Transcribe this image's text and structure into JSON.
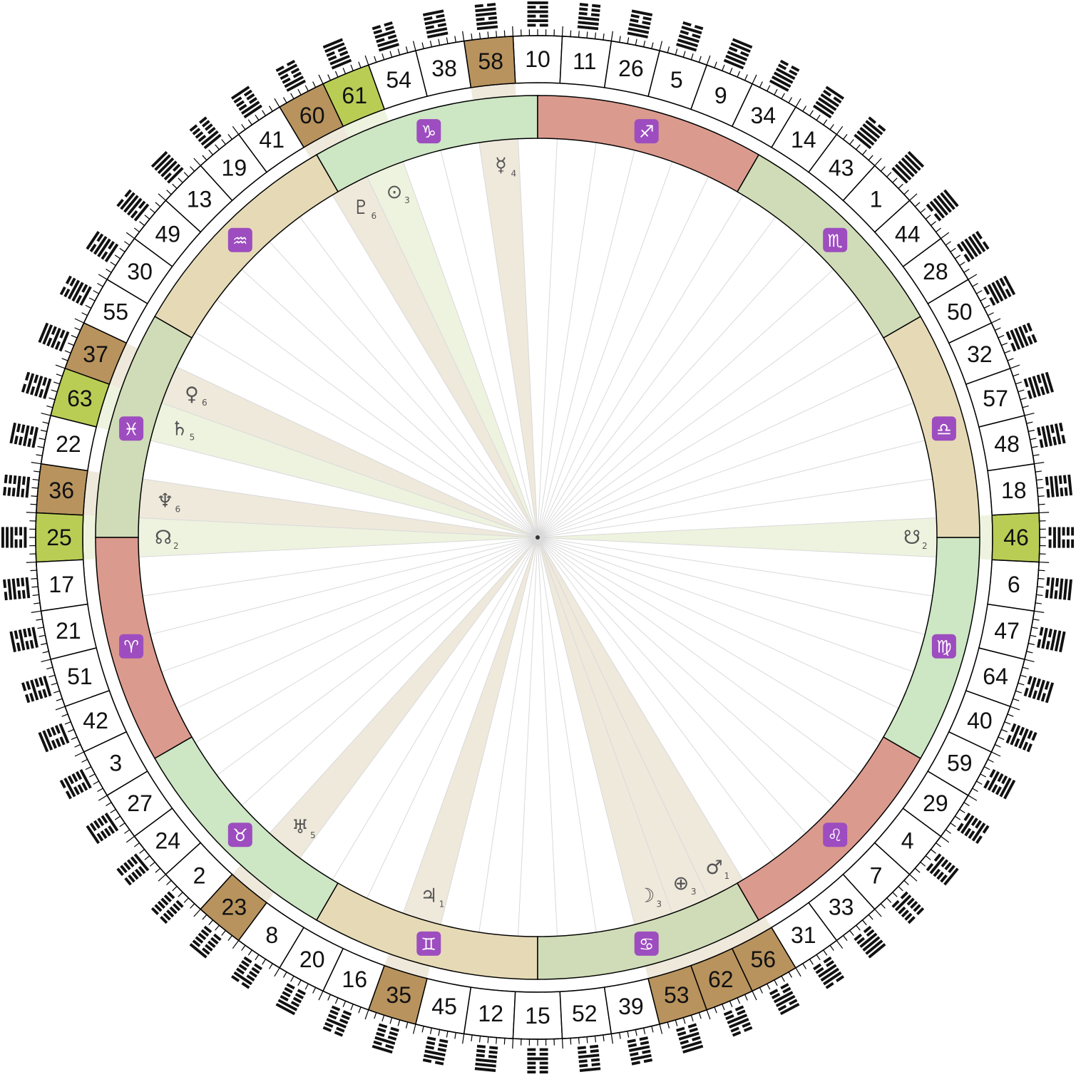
{
  "wheel": {
    "gates_counterclockwise_from_top": [
      10,
      58,
      38,
      54,
      61,
      60,
      41,
      19,
      13,
      49,
      30,
      55,
      37,
      63,
      22,
      36,
      25,
      17,
      21,
      51,
      42,
      3,
      27,
      24,
      2,
      23,
      8,
      20,
      16,
      35,
      45,
      12,
      15,
      52,
      39,
      53,
      62,
      56,
      31,
      33,
      7,
      4,
      29,
      59,
      40,
      64,
      47,
      6,
      46,
      18,
      48,
      57,
      32,
      50,
      28,
      44,
      1,
      43,
      14,
      34,
      9,
      5,
      26,
      11
    ],
    "highlighted_gates": [
      {
        "gate": 58,
        "color": "#b8935e"
      },
      {
        "gate": 61,
        "color": "#b9cd55"
      },
      {
        "gate": 60,
        "color": "#b8935e"
      },
      {
        "gate": 37,
        "color": "#b8935e"
      },
      {
        "gate": 63,
        "color": "#b9cd55"
      },
      {
        "gate": 36,
        "color": "#b8935e"
      },
      {
        "gate": 25,
        "color": "#b9cd55"
      },
      {
        "gate": 23,
        "color": "#b8935e"
      },
      {
        "gate": 35,
        "color": "#b8935e"
      },
      {
        "gate": 53,
        "color": "#b8935e"
      },
      {
        "gate": 62,
        "color": "#b8935e"
      },
      {
        "gate": 56,
        "color": "#b8935e"
      },
      {
        "gate": 46,
        "color": "#b9cd55"
      }
    ],
    "hexagram_symbols": [
      "䷿",
      "䷹",
      "䷥",
      "䷵",
      "䷼",
      "䷻",
      "䷨",
      "䷒",
      "䷌",
      "䷰",
      "䷝",
      "䷶",
      "䷤",
      "䷾",
      "䷕",
      "䷣",
      "䷘",
      "䷐",
      "䷔",
      "䷲",
      "䷩",
      "䷂",
      "䷚",
      "䷗",
      "䷁",
      "䷖",
      "䷇",
      "䷓",
      "䷏",
      "䷢",
      "䷬",
      "䷋",
      "䷎",
      "䷳",
      "䷦",
      "䷴",
      "䷽",
      "䷷",
      "䷞",
      "䷠",
      "䷆",
      "䷃",
      "䷜",
      "䷺",
      "䷧",
      "䷿",
      "䷅",
      "䷅",
      "䷭",
      "䷑",
      "䷯",
      "䷸",
      "䷟",
      "䷱",
      "䷛",
      "䷫",
      "䷀",
      "䷪",
      "䷍",
      "䷡",
      "䷈",
      "䷄",
      "䷙",
      "䷊"
    ],
    "zodiac_signs": [
      {
        "name": "Capricorn",
        "glyph": "♑",
        "color": "#cde6c4"
      },
      {
        "name": "Aquarius",
        "glyph": "♒",
        "color": "#e6dab6"
      },
      {
        "name": "Pisces",
        "glyph": "♓",
        "color": "#cfdcb7"
      },
      {
        "name": "Aries",
        "glyph": "♈",
        "color": "#db9a8e"
      },
      {
        "name": "Taurus",
        "glyph": "♉",
        "color": "#cde6c4"
      },
      {
        "name": "Gemini",
        "glyph": "♊",
        "color": "#e6dab6"
      },
      {
        "name": "Cancer",
        "glyph": "♋",
        "color": "#cfdcb7"
      },
      {
        "name": "Leo",
        "glyph": "♌",
        "color": "#db9a8e"
      },
      {
        "name": "Virgo",
        "glyph": "♍",
        "color": "#cde6c4"
      },
      {
        "name": "Libra",
        "glyph": "♎",
        "color": "#e6dab6"
      },
      {
        "name": "Scorpio",
        "glyph": "♏",
        "color": "#cfdcb7"
      },
      {
        "name": "Sagittarius",
        "glyph": "♐",
        "color": "#db9a8e"
      }
    ],
    "zodiac_glyph_bg": "#9d4dbf",
    "planets": [
      {
        "name": "Mercury",
        "glyph": "☿",
        "line": "4",
        "gate": 58,
        "tone": "beige"
      },
      {
        "name": "Sun",
        "glyph": "⊙",
        "line": "3",
        "gate": 61,
        "tone": "green"
      },
      {
        "name": "Pluto",
        "glyph": "♇",
        "line": "6",
        "gate": 60,
        "tone": "beige"
      },
      {
        "name": "Venus",
        "glyph": "♀",
        "line": "6",
        "gate": 37,
        "tone": "beige"
      },
      {
        "name": "Saturn",
        "glyph": "♄",
        "line": "5",
        "gate": 63,
        "tone": "green"
      },
      {
        "name": "Neptune",
        "glyph": "♆",
        "line": "6",
        "gate": 36,
        "tone": "beige"
      },
      {
        "name": "North Node",
        "glyph": "☊",
        "line": "2",
        "gate": 25,
        "tone": "green"
      },
      {
        "name": "Uranus",
        "glyph": "♅",
        "line": "5",
        "gate": 23,
        "tone": "beige"
      },
      {
        "name": "Jupiter",
        "glyph": "♃",
        "line": "1",
        "gate": 35,
        "tone": "beige"
      },
      {
        "name": "Moon",
        "glyph": "☽",
        "line": "3",
        "gate": 53,
        "tone": "beige"
      },
      {
        "name": "Earth",
        "glyph": "⊕",
        "line": "3",
        "gate": 62,
        "tone": "beige"
      },
      {
        "name": "Mars",
        "glyph": "♂",
        "line": "1",
        "gate": 56,
        "tone": "beige"
      },
      {
        "name": "South Node",
        "glyph": "☋",
        "line": "2",
        "gate": 46,
        "tone": "green"
      }
    ],
    "colors": {
      "wedge_beige": "#efe9dc",
      "wedge_green": "#eef3df",
      "radial_line": "#d9d9d9",
      "outline": "#000000"
    }
  }
}
